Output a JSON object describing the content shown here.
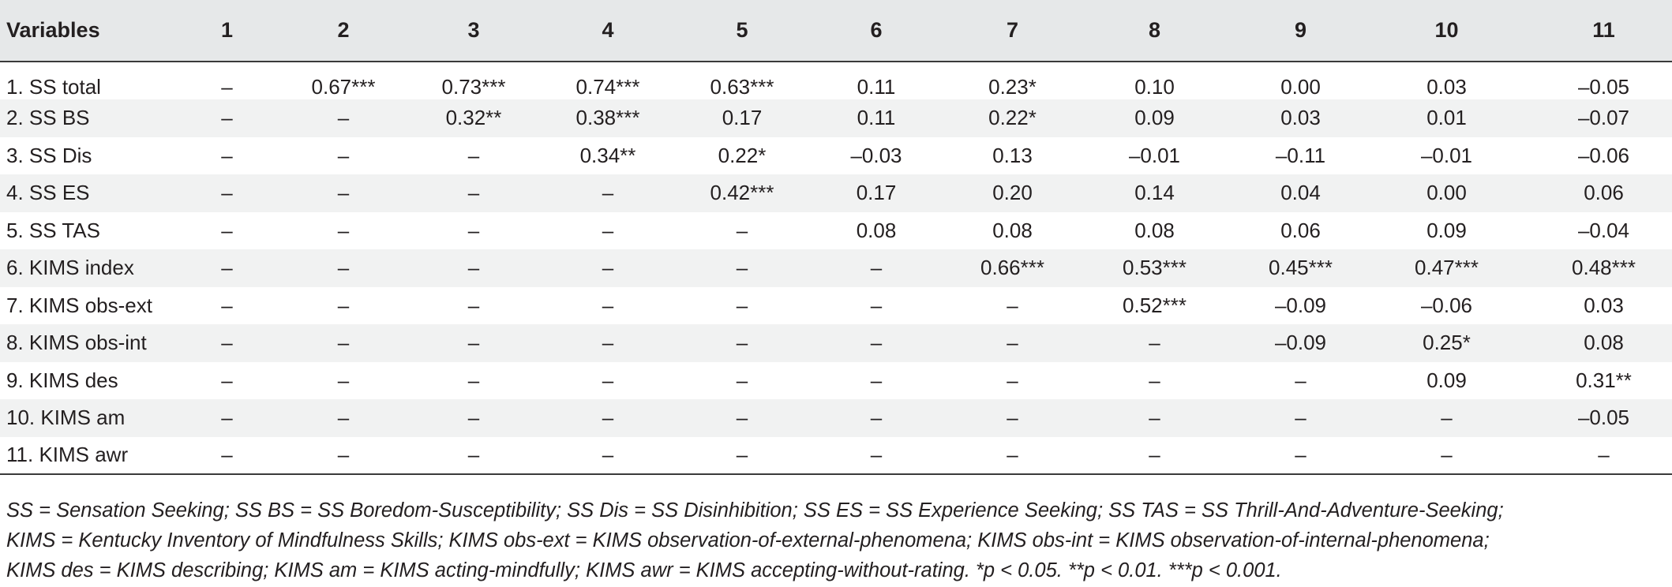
{
  "table": {
    "header": [
      "Variables",
      "1",
      "2",
      "3",
      "4",
      "5",
      "6",
      "7",
      "8",
      "9",
      "10",
      "11"
    ],
    "rows": [
      {
        "label": "1. SS total",
        "cells": [
          "–",
          "0.67***",
          "0.73***",
          "0.74***",
          "0.63***",
          "0.11",
          "0.23*",
          "0.10",
          "0.00",
          "0.03",
          "–0.05"
        ]
      },
      {
        "label": "2. SS BS",
        "cells": [
          "–",
          "–",
          "0.32**",
          "0.38***",
          "0.17",
          "0.11",
          "0.22*",
          "0.09",
          "0.03",
          "0.01",
          "–0.07"
        ]
      },
      {
        "label": "3. SS Dis",
        "cells": [
          "–",
          "–",
          "–",
          "0.34**",
          "0.22*",
          "–0.03",
          "0.13",
          "–0.01",
          "–0.11",
          "–0.01",
          "–0.06"
        ]
      },
      {
        "label": "4. SS ES",
        "cells": [
          "–",
          "–",
          "–",
          "–",
          "0.42***",
          "0.17",
          "0.20",
          "0.14",
          "0.04",
          "0.00",
          "0.06"
        ]
      },
      {
        "label": "5. SS TAS",
        "cells": [
          "–",
          "–",
          "–",
          "–",
          "–",
          "0.08",
          "0.08",
          "0.08",
          "0.06",
          "0.09",
          "–0.04"
        ]
      },
      {
        "label": "6. KIMS index",
        "cells": [
          "–",
          "–",
          "–",
          "–",
          "–",
          "–",
          "0.66***",
          "0.53***",
          "0.45***",
          "0.47***",
          "0.48***"
        ]
      },
      {
        "label": "7. KIMS obs-ext",
        "cells": [
          "–",
          "–",
          "–",
          "–",
          "–",
          "–",
          "–",
          "0.52***",
          "–0.09",
          "–0.06",
          "0.03"
        ]
      },
      {
        "label": "8. KIMS obs-int",
        "cells": [
          "–",
          "–",
          "–",
          "–",
          "–",
          "–",
          "–",
          "–",
          "–0.09",
          "0.25*",
          "0.08"
        ]
      },
      {
        "label": "9. KIMS des",
        "cells": [
          "–",
          "–",
          "–",
          "–",
          "–",
          "–",
          "–",
          "–",
          "–",
          "0.09",
          "0.31**"
        ]
      },
      {
        "label": "10. KIMS am",
        "cells": [
          "–",
          "–",
          "–",
          "–",
          "–",
          "–",
          "–",
          "–",
          "–",
          "–",
          "–0.05"
        ]
      },
      {
        "label": "11. KIMS awr",
        "cells": [
          "–",
          "–",
          "–",
          "–",
          "–",
          "–",
          "–",
          "–",
          "–",
          "–",
          "–"
        ]
      }
    ]
  },
  "footnote": {
    "lines": [
      "SS = Sensation Seeking; SS BS = SS Boredom-Susceptibility; SS Dis = SS Disinhibition; SS ES = SS Experience Seeking; SS TAS = SS Thrill-And-Adventure-Seeking;",
      "KIMS = Kentucky Inventory of Mindfulness Skills; KIMS obs-ext = KIMS observation-of-external-phenomena; KIMS obs-int = KIMS observation-of-internal-phenomena;",
      "KIMS des = KIMS describing; KIMS am = KIMS acting-mindfully; KIMS awr = KIMS accepting-without-rating. *p < 0.05. **p < 0.01. ***p < 0.001."
    ]
  }
}
